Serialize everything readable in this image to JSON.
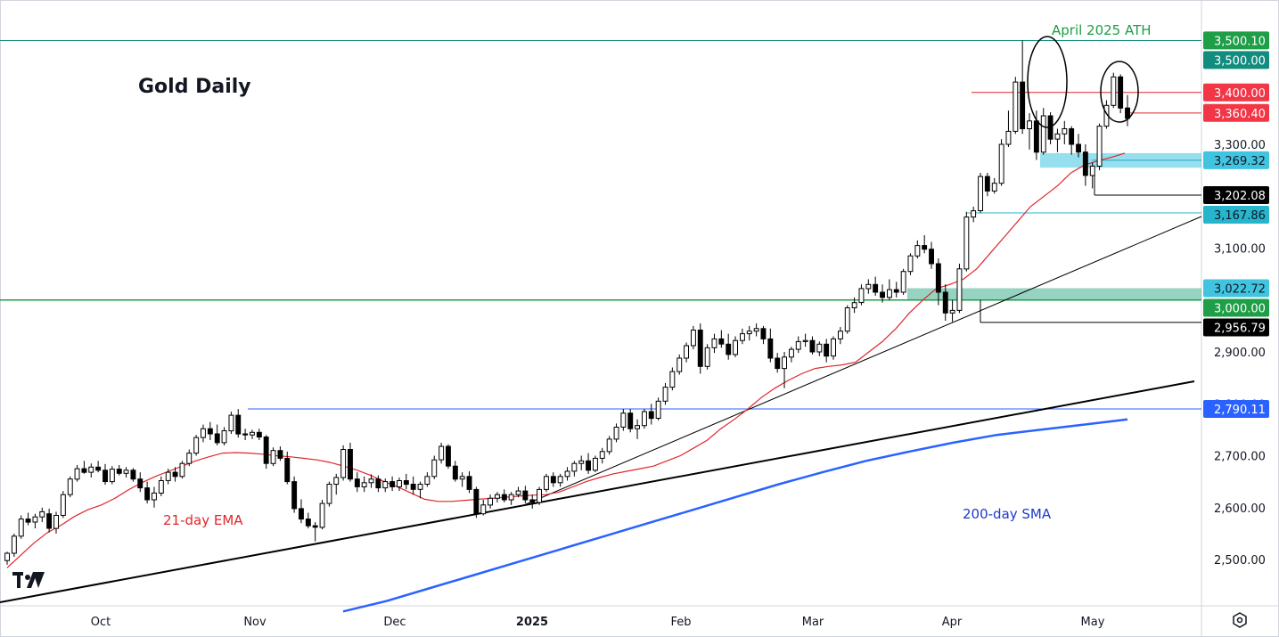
{
  "chart_data": {
    "type": "candlestick",
    "title": "Gold Daily",
    "y_axis": {
      "position": "right",
      "range": [
        2410,
        3555
      ],
      "ticks": [
        "3,300.00",
        "3,100.00",
        "2,900.00",
        "2,800.00",
        "2,700.00",
        "2,600.00",
        "2,500.00"
      ]
    },
    "x_axis": {
      "labels": [
        "Oct",
        "Nov",
        "Dec",
        "2025",
        "Feb",
        "Mar",
        "Apr",
        "May"
      ]
    },
    "price_labels": [
      {
        "value": 3500.1,
        "text": "3,500.10",
        "bg": "#1e9e47",
        "fg": "#ffffff"
      },
      {
        "value": 3500.0,
        "text": "3,500.00",
        "bg": "#128c7e",
        "fg": "#ffffff"
      },
      {
        "value": 3400.0,
        "text": "3,400.00",
        "bg": "#f23645",
        "fg": "#ffffff"
      },
      {
        "value": 3360.4,
        "text": "3,360.40",
        "bg": "#f23645",
        "fg": "#ffffff"
      },
      {
        "value": 3269.32,
        "text": "3,269.32",
        "bg": "#40c4e0",
        "fg": "#131722"
      },
      {
        "value": 3202.08,
        "text": "3,202.08",
        "bg": "#000000",
        "fg": "#ffffff"
      },
      {
        "value": 3167.86,
        "text": "3,167.86",
        "bg": "#26b5cc",
        "fg": "#131722"
      },
      {
        "value": 3022.72,
        "text": "3,022.72",
        "bg": "#40c4e0",
        "fg": "#131722"
      },
      {
        "value": 3000.0,
        "text": "3,000.00",
        "bg": "#1e9e47",
        "fg": "#ffffff"
      },
      {
        "value": 2956.79,
        "text": "2,956.79",
        "bg": "#000000",
        "fg": "#ffffff"
      },
      {
        "value": 2790.11,
        "text": "2,790.11",
        "bg": "#2962ff",
        "fg": "#ffffff"
      }
    ],
    "annotations": [
      {
        "id": "ath",
        "text": "April 2025 ATH",
        "color": "#1e9e47"
      },
      {
        "id": "ema",
        "text": "21-day EMA",
        "color": "#e0262b"
      },
      {
        "id": "sma",
        "text": "200-day SMA",
        "color": "#1c39d0"
      }
    ],
    "levels": [
      {
        "value": 3500,
        "color": "#128c7e"
      },
      {
        "value": 3400,
        "color": "#e0262b"
      },
      {
        "value": 3360.4,
        "color": "#e0262b"
      },
      {
        "value": 3269.32,
        "color": "#2aa9c4"
      },
      {
        "value": 3202.08,
        "color": "#000000"
      },
      {
        "value": 3167.86,
        "color": "#26b5cc"
      },
      {
        "value": 3000,
        "color": "#1e9e47"
      },
      {
        "value": 2956.79,
        "color": "#000000"
      },
      {
        "value": 2790.11,
        "color": "#2962ff"
      }
    ],
    "zones": [
      {
        "from": 3255,
        "to": 3283,
        "color": "#40c4e0"
      },
      {
        "from": 3000,
        "to": 3022.72,
        "color": "#3fae8c"
      }
    ],
    "candles": [
      [
        2498,
        2515,
        2490,
        2512
      ],
      [
        2512,
        2550,
        2505,
        2545
      ],
      [
        2545,
        2585,
        2540,
        2578
      ],
      [
        2578,
        2590,
        2566,
        2572
      ],
      [
        2572,
        2588,
        2560,
        2582
      ],
      [
        2582,
        2600,
        2572,
        2592
      ],
      [
        2588,
        2598,
        2552,
        2560
      ],
      [
        2560,
        2592,
        2550,
        2585
      ],
      [
        2585,
        2632,
        2580,
        2625
      ],
      [
        2625,
        2660,
        2620,
        2655
      ],
      [
        2655,
        2682,
        2650,
        2675
      ],
      [
        2675,
        2690,
        2665,
        2668
      ],
      [
        2668,
        2685,
        2658,
        2678
      ],
      [
        2678,
        2690,
        2668,
        2672
      ],
      [
        2672,
        2684,
        2644,
        2650
      ],
      [
        2650,
        2680,
        2645,
        2674
      ],
      [
        2674,
        2682,
        2662,
        2666
      ],
      [
        2666,
        2678,
        2658,
        2672
      ],
      [
        2672,
        2676,
        2650,
        2655
      ],
      [
        2655,
        2668,
        2630,
        2638
      ],
      [
        2638,
        2650,
        2608,
        2615
      ],
      [
        2615,
        2640,
        2600,
        2628
      ],
      [
        2628,
        2660,
        2622,
        2652
      ],
      [
        2652,
        2675,
        2645,
        2668
      ],
      [
        2668,
        2678,
        2650,
        2660
      ],
      [
        2660,
        2690,
        2656,
        2685
      ],
      [
        2685,
        2712,
        2680,
        2705
      ],
      [
        2705,
        2740,
        2700,
        2735
      ],
      [
        2735,
        2760,
        2726,
        2752
      ],
      [
        2752,
        2765,
        2730,
        2742
      ],
      [
        2742,
        2760,
        2720,
        2725
      ],
      [
        2725,
        2755,
        2720,
        2748
      ],
      [
        2748,
        2785,
        2742,
        2778
      ],
      [
        2778,
        2790,
        2735,
        2742
      ],
      [
        2742,
        2752,
        2730,
        2740
      ],
      [
        2740,
        2750,
        2732,
        2745
      ],
      [
        2745,
        2752,
        2730,
        2736
      ],
      [
        2736,
        2740,
        2675,
        2685
      ],
      [
        2685,
        2716,
        2680,
        2710
      ],
      [
        2710,
        2718,
        2690,
        2695
      ],
      [
        2695,
        2708,
        2645,
        2650
      ],
      [
        2650,
        2660,
        2590,
        2598
      ],
      [
        2598,
        2616,
        2570,
        2578
      ],
      [
        2578,
        2590,
        2560,
        2565
      ],
      [
        2565,
        2572,
        2535,
        2562
      ],
      [
        2562,
        2615,
        2558,
        2608
      ],
      [
        2608,
        2650,
        2602,
        2645
      ],
      [
        2645,
        2665,
        2625,
        2658
      ],
      [
        2658,
        2720,
        2652,
        2712
      ],
      [
        2712,
        2725,
        2650,
        2655
      ],
      [
        2655,
        2668,
        2630,
        2640
      ],
      [
        2640,
        2660,
        2630,
        2648
      ],
      [
        2648,
        2664,
        2638,
        2655
      ],
      [
        2655,
        2662,
        2630,
        2638
      ],
      [
        2638,
        2656,
        2630,
        2650
      ],
      [
        2650,
        2660,
        2632,
        2640
      ],
      [
        2640,
        2658,
        2632,
        2652
      ],
      [
        2652,
        2665,
        2635,
        2645
      ],
      [
        2645,
        2660,
        2625,
        2635
      ],
      [
        2635,
        2650,
        2618,
        2645
      ],
      [
        2645,
        2668,
        2640,
        2660
      ],
      [
        2660,
        2700,
        2655,
        2692
      ],
      [
        2692,
        2725,
        2685,
        2718
      ],
      [
        2718,
        2722,
        2675,
        2680
      ],
      [
        2680,
        2690,
        2650,
        2655
      ],
      [
        2655,
        2668,
        2640,
        2660
      ],
      [
        2660,
        2670,
        2628,
        2635
      ],
      [
        2635,
        2640,
        2580,
        2588
      ],
      [
        2588,
        2615,
        2585,
        2605
      ],
      [
        2605,
        2625,
        2598,
        2618
      ],
      [
        2618,
        2630,
        2610,
        2625
      ],
      [
        2625,
        2635,
        2610,
        2615
      ],
      [
        2615,
        2630,
        2605,
        2625
      ],
      [
        2625,
        2640,
        2620,
        2632
      ],
      [
        2632,
        2642,
        2608,
        2615
      ],
      [
        2615,
        2625,
        2598,
        2610
      ],
      [
        2610,
        2640,
        2605,
        2635
      ],
      [
        2635,
        2665,
        2630,
        2660
      ],
      [
        2660,
        2668,
        2640,
        2648
      ],
      [
        2648,
        2665,
        2640,
        2660
      ],
      [
        2660,
        2678,
        2652,
        2670
      ],
      [
        2670,
        2690,
        2660,
        2685
      ],
      [
        2685,
        2700,
        2672,
        2690
      ],
      [
        2690,
        2705,
        2665,
        2672
      ],
      [
        2672,
        2700,
        2668,
        2695
      ],
      [
        2695,
        2715,
        2685,
        2708
      ],
      [
        2708,
        2738,
        2702,
        2732
      ],
      [
        2732,
        2762,
        2726,
        2755
      ],
      [
        2755,
        2790,
        2748,
        2782
      ],
      [
        2782,
        2790,
        2745,
        2752
      ],
      [
        2752,
        2770,
        2732,
        2758
      ],
      [
        2758,
        2790,
        2752,
        2785
      ],
      [
        2785,
        2800,
        2760,
        2772
      ],
      [
        2772,
        2812,
        2768,
        2805
      ],
      [
        2805,
        2840,
        2798,
        2832
      ],
      [
        2832,
        2870,
        2826,
        2862
      ],
      [
        2862,
        2895,
        2856,
        2888
      ],
      [
        2888,
        2918,
        2880,
        2912
      ],
      [
        2912,
        2950,
        2905,
        2942
      ],
      [
        2942,
        2955,
        2858,
        2872
      ],
      [
        2872,
        2915,
        2866,
        2908
      ],
      [
        2908,
        2935,
        2898,
        2925
      ],
      [
        2925,
        2942,
        2908,
        2915
      ],
      [
        2915,
        2935,
        2885,
        2895
      ],
      [
        2895,
        2930,
        2890,
        2922
      ],
      [
        2922,
        2945,
        2915,
        2935
      ],
      [
        2935,
        2950,
        2922,
        2940
      ],
      [
        2940,
        2955,
        2930,
        2945
      ],
      [
        2945,
        2950,
        2915,
        2925
      ],
      [
        2925,
        2945,
        2880,
        2888
      ],
      [
        2888,
        2898,
        2860,
        2868
      ],
      [
        2868,
        2900,
        2830,
        2890
      ],
      [
        2890,
        2910,
        2880,
        2905
      ],
      [
        2905,
        2930,
        2898,
        2920
      ],
      [
        2920,
        2935,
        2910,
        2922
      ],
      [
        2922,
        2930,
        2895,
        2900
      ],
      [
        2900,
        2920,
        2892,
        2915
      ],
      [
        2915,
        2925,
        2880,
        2892
      ],
      [
        2892,
        2930,
        2885,
        2925
      ],
      [
        2925,
        2948,
        2915,
        2940
      ],
      [
        2940,
        2990,
        2935,
        2985
      ],
      [
        2985,
        3005,
        2975,
        2995
      ],
      [
        2995,
        3030,
        2990,
        3022
      ],
      [
        3022,
        3040,
        3012,
        3030
      ],
      [
        3030,
        3045,
        3008,
        3015
      ],
      [
        3015,
        3030,
        2995,
        3005
      ],
      [
        3005,
        3040,
        3000,
        3020
      ],
      [
        3020,
        3035,
        3005,
        3015
      ],
      [
        3015,
        3060,
        3010,
        3055
      ],
      [
        3055,
        3090,
        3048,
        3085
      ],
      [
        3085,
        3115,
        3080,
        3105
      ],
      [
        3105,
        3125,
        3090,
        3098
      ],
      [
        3098,
        3112,
        3060,
        3070
      ],
      [
        3070,
        3080,
        2990,
        3015
      ],
      [
        3015,
        3030,
        2960,
        2975
      ],
      [
        2975,
        3000,
        2958,
        2980
      ],
      [
        2980,
        3070,
        2975,
        3060
      ],
      [
        3060,
        3170,
        3055,
        3160
      ],
      [
        3160,
        3180,
        3150,
        3172
      ],
      [
        3172,
        3245,
        3168,
        3238
      ],
      [
        3238,
        3245,
        3200,
        3210
      ],
      [
        3210,
        3235,
        3205,
        3225
      ],
      [
        3225,
        3310,
        3220,
        3300
      ],
      [
        3300,
        3365,
        3295,
        3325
      ],
      [
        3325,
        3430,
        3320,
        3420
      ],
      [
        3420,
        3500,
        3320,
        3330
      ],
      [
        3330,
        3360,
        3290,
        3345
      ],
      [
        3345,
        3365,
        3270,
        3285
      ],
      [
        3285,
        3370,
        3280,
        3355
      ],
      [
        3355,
        3362,
        3300,
        3310
      ],
      [
        3310,
        3330,
        3285,
        3320
      ],
      [
        3320,
        3345,
        3300,
        3330
      ],
      [
        3330,
        3335,
        3280,
        3300
      ],
      [
        3300,
        3320,
        3275,
        3285
      ],
      [
        3285,
        3300,
        3220,
        3240
      ],
      [
        3240,
        3265,
        3215,
        3258
      ],
      [
        3258,
        3340,
        3250,
        3335
      ],
      [
        3335,
        3385,
        3330,
        3375
      ],
      [
        3375,
        3438,
        3370,
        3430
      ],
      [
        3430,
        3435,
        3360,
        3370
      ],
      [
        3370,
        3395,
        3335,
        3350
      ]
    ],
    "ema21_y": [
      2484,
      2508,
      2532,
      2552,
      2566,
      2583,
      2596,
      2605,
      2618,
      2634,
      2648,
      2660,
      2670,
      2680,
      2690,
      2698,
      2705,
      2706,
      2705,
      2703,
      2700,
      2698,
      2695,
      2692,
      2687,
      2680,
      2672,
      2662,
      2650,
      2640,
      2628,
      2616,
      2612,
      2612,
      2614,
      2616,
      2618,
      2620,
      2622,
      2624,
      2625,
      2630,
      2640,
      2650,
      2658,
      2665,
      2670,
      2675,
      2680,
      2690,
      2700,
      2715,
      2730,
      2752,
      2770,
      2790,
      2812,
      2830,
      2845,
      2858,
      2868,
      2872,
      2875,
      2880,
      2900,
      2920,
      2945,
      2975,
      3000,
      3022,
      3030,
      3040,
      3060,
      3090,
      3120,
      3150,
      3180,
      3200,
      3220,
      3245,
      3260,
      3268,
      3275,
      3283
    ],
    "sma200_y": [
      2400,
      2420,
      2445,
      2470,
      2495,
      2520,
      2545,
      2570,
      2595,
      2620,
      2645,
      2668,
      2690,
      2708,
      2725,
      2740,
      2750,
      2760,
      2770
    ]
  }
}
